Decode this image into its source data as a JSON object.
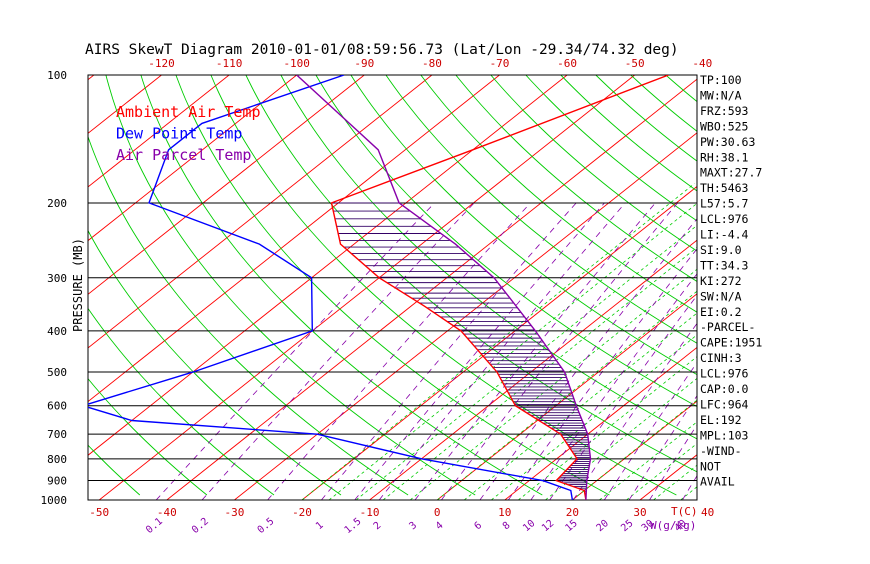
{
  "chart_data": {
    "type": "line",
    "title": "AIRS SkewT Diagram 2010-01-01/08:59:56.73 (Lat/Lon -29.34/74.32 deg)",
    "ylabel": "PRESSURE (MB)",
    "xlabel_bottom_temp": "T(C)",
    "xlabel_bottom_mix": "W(g/kg)",
    "p_ticks": [
      "100",
      "200",
      "300",
      "400",
      "500",
      "600",
      "700",
      "800",
      "900",
      "1000"
    ],
    "top_temp_ticks": [
      "-120",
      "-110",
      "-100",
      "-90",
      "-80",
      "-70",
      "-60",
      "-50",
      "-40"
    ],
    "bottom_temp_ticks": [
      "-50",
      "-40",
      "-30",
      "-20",
      "-10",
      "0",
      "10",
      "20",
      "30",
      "40"
    ],
    "mixing_ticks": [
      "0.1",
      "0.2",
      "0.5",
      "1",
      "1.5",
      "2",
      "3",
      "4",
      "6",
      "8",
      "10",
      "12",
      "15",
      "20",
      "25",
      "30",
      "40"
    ],
    "series": [
      {
        "name": "Ambient Air Temp",
        "color": "#ff0000",
        "points": [
          [
            100,
            -45
          ],
          [
            150,
            -60
          ],
          [
            200,
            -71
          ],
          [
            250,
            -62
          ],
          [
            300,
            -50
          ],
          [
            350,
            -38
          ],
          [
            400,
            -28
          ],
          [
            500,
            -15
          ],
          [
            600,
            -6
          ],
          [
            700,
            6
          ],
          [
            800,
            13
          ],
          [
            900,
            14
          ],
          [
            950,
            20
          ],
          [
            1000,
            22
          ]
        ]
      },
      {
        "name": "Dew Point Temp",
        "color": "#0000ff",
        "points": [
          [
            100,
            -93
          ],
          [
            130,
            -105
          ],
          [
            150,
            -105
          ],
          [
            200,
            -98
          ],
          [
            250,
            -74
          ],
          [
            300,
            -60
          ],
          [
            400,
            -50
          ],
          [
            500,
            -60
          ],
          [
            600,
            -70
          ],
          [
            650,
            -60
          ],
          [
            700,
            -30
          ],
          [
            800,
            -10
          ],
          [
            900,
            12
          ],
          [
            950,
            18
          ],
          [
            1000,
            20
          ]
        ]
      },
      {
        "name": "Air Parcel Temp",
        "color": "#8800aa",
        "points": [
          [
            100,
            -100
          ],
          [
            150,
            -74
          ],
          [
            200,
            -61
          ],
          [
            250,
            -45
          ],
          [
            300,
            -33
          ],
          [
            400,
            -17
          ],
          [
            500,
            -5
          ],
          [
            600,
            3
          ],
          [
            700,
            10
          ],
          [
            800,
            15
          ],
          [
            900,
            18.5
          ],
          [
            1000,
            22
          ]
        ]
      }
    ],
    "legend": [
      "Ambient Air Temp",
      "Dew Point Temp",
      "Air Parcel Temp"
    ],
    "legend_position": "top-left",
    "indices": [
      "TP:100",
      "MW:N/A",
      "FRZ:593",
      "WBO:525",
      "PW:30.63",
      "RH:38.1",
      "MAXT:27.7",
      "TH:5463",
      "L57:5.7",
      "LCL:976",
      "LI:-4.4",
      "SI:9.0",
      "TT:34.3",
      "KI:272",
      "SW:N/A",
      "EI:0.2",
      "-PARCEL-",
      "CAPE:1951",
      "CINH:3",
      "LCL:976",
      "CAP:0.0",
      "LFC:964",
      "EL:192",
      "MPL:103",
      "-WIND-",
      "NOT",
      "AVAIL"
    ],
    "colors": {
      "isotherm": "#ff0000",
      "dry_adiabat": "#00cc00",
      "moist_adiabat": "#00cc00",
      "mixing_ratio": "#8800aa",
      "isobar": "#000000",
      "cape_hatch": "#330066"
    }
  }
}
